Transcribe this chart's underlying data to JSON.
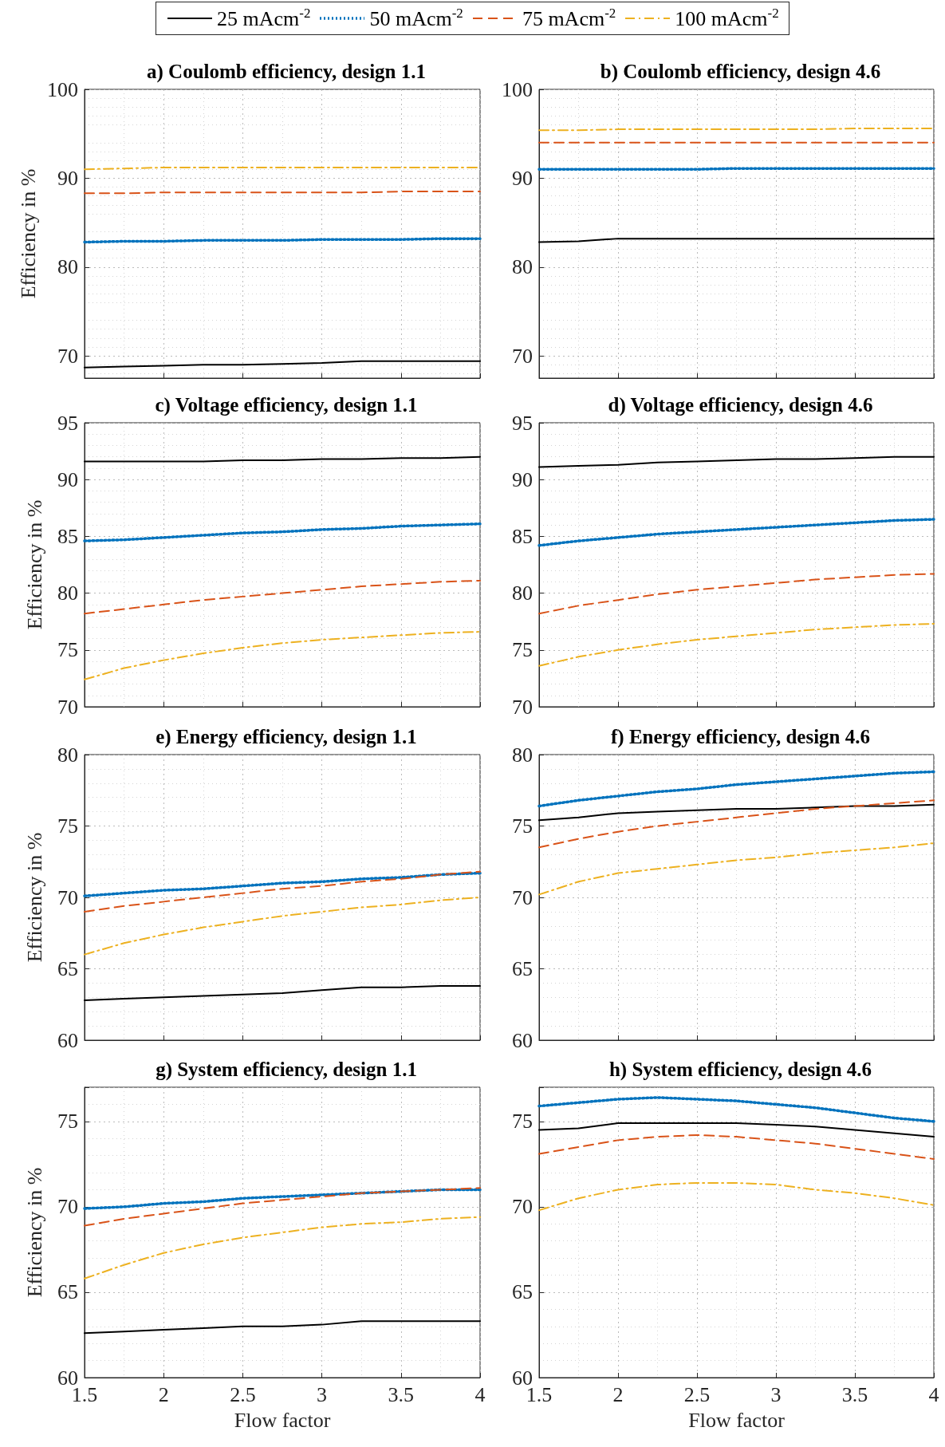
{
  "chart_data": [
    {
      "type": "line",
      "title": "a) Coulomb efficiency, design 1.1",
      "ylabel": "Efficiency in %",
      "legend": "top",
      "grid": true,
      "tick_labels": "y",
      "xlim": [
        1.5,
        4
      ],
      "xticks": [
        1.5,
        2,
        2.5,
        3,
        3.5,
        4
      ],
      "ylim": [
        67.5,
        100
      ],
      "yticks": [
        70,
        80,
        90,
        100
      ],
      "x": [
        1.5,
        1.75,
        2,
        2.25,
        2.5,
        2.75,
        3,
        3.25,
        3.5,
        3.75,
        4
      ],
      "series": [
        {
          "name": "25 mAcm$^{-2}$",
          "color": "#000000",
          "line_style": "solid",
          "values": [
            68.7,
            68.8,
            68.9,
            69.0,
            69.0,
            69.1,
            69.2,
            69.4,
            69.4,
            69.4,
            69.4
          ]
        },
        {
          "name": "50 mAcm$^{-2}$",
          "color": "#0072bd",
          "line_style": "dotted",
          "values": [
            82.8,
            82.9,
            82.9,
            83.0,
            83.0,
            83.0,
            83.1,
            83.1,
            83.1,
            83.2,
            83.2
          ]
        },
        {
          "name": "75 mAcm$^{-2}$",
          "color": "#d95319",
          "line_style": "dashed",
          "values": [
            88.3,
            88.3,
            88.4,
            88.4,
            88.4,
            88.4,
            88.4,
            88.4,
            88.5,
            88.5,
            88.5
          ]
        },
        {
          "name": "100 mAcm$^{-2}$",
          "color": "#edb120",
          "line_style": "dashdot",
          "values": [
            91.0,
            91.1,
            91.2,
            91.2,
            91.2,
            91.2,
            91.2,
            91.2,
            91.2,
            91.2,
            91.2
          ]
        }
      ]
    },
    {
      "type": "line",
      "title": "b) Coulomb efficiency, design 4.6",
      "grid": true,
      "tick_labels": "y",
      "xlim": [
        1.5,
        4
      ],
      "xticks": [
        1.5,
        2,
        2.5,
        3,
        3.5,
        4
      ],
      "ylim": [
        67.5,
        100
      ],
      "yticks": [
        70,
        80,
        90,
        100
      ],
      "x": [
        1.5,
        1.75,
        2,
        2.25,
        2.5,
        2.75,
        3,
        3.25,
        3.5,
        3.75,
        4
      ],
      "series": [
        {
          "color": "#000000",
          "line_style": "solid",
          "values": [
            82.8,
            82.9,
            83.2,
            83.2,
            83.2,
            83.2,
            83.2,
            83.2,
            83.2,
            83.2,
            83.2
          ]
        },
        {
          "color": "#0072bd",
          "line_style": "dotted",
          "values": [
            91.0,
            91.0,
            91.0,
            91.0,
            91.0,
            91.1,
            91.1,
            91.1,
            91.1,
            91.1,
            91.1
          ]
        },
        {
          "color": "#d95319",
          "line_style": "dashed",
          "values": [
            94.0,
            94.0,
            94.0,
            94.0,
            94.0,
            94.0,
            94.0,
            94.0,
            94.0,
            94.0,
            94.0
          ]
        },
        {
          "color": "#edb120",
          "line_style": "dashdot",
          "values": [
            95.4,
            95.4,
            95.5,
            95.5,
            95.5,
            95.5,
            95.5,
            95.5,
            95.6,
            95.6,
            95.6
          ]
        }
      ]
    },
    {
      "type": "line",
      "title": "c) Voltage efficiency, design 1.1",
      "ylabel": "Efficiency in %",
      "grid": true,
      "tick_labels": "y",
      "xlim": [
        1.5,
        4
      ],
      "xticks": [
        1.5,
        2,
        2.5,
        3,
        3.5,
        4
      ],
      "ylim": [
        70,
        95
      ],
      "yticks": [
        70,
        75,
        80,
        85,
        90,
        95
      ],
      "x": [
        1.5,
        1.75,
        2,
        2.25,
        2.5,
        2.75,
        3,
        3.25,
        3.5,
        3.75,
        4
      ],
      "series": [
        {
          "color": "#000000",
          "line_style": "solid",
          "values": [
            91.6,
            91.6,
            91.6,
            91.6,
            91.7,
            91.7,
            91.8,
            91.8,
            91.9,
            91.9,
            92.0
          ]
        },
        {
          "color": "#0072bd",
          "line_style": "dotted",
          "values": [
            84.6,
            84.7,
            84.9,
            85.1,
            85.3,
            85.4,
            85.6,
            85.7,
            85.9,
            86.0,
            86.1
          ]
        },
        {
          "color": "#d95319",
          "line_style": "dashed",
          "values": [
            78.2,
            78.6,
            79.0,
            79.4,
            79.7,
            80.0,
            80.3,
            80.6,
            80.8,
            81.0,
            81.1
          ]
        },
        {
          "color": "#edb120",
          "line_style": "dashdot",
          "values": [
            72.4,
            73.4,
            74.1,
            74.7,
            75.2,
            75.6,
            75.9,
            76.1,
            76.3,
            76.5,
            76.6
          ]
        }
      ]
    },
    {
      "type": "line",
      "title": "d) Voltage efficiency, design 4.6",
      "grid": true,
      "tick_labels": "y",
      "xlim": [
        1.5,
        4
      ],
      "xticks": [
        1.5,
        2,
        2.5,
        3,
        3.5,
        4
      ],
      "ylim": [
        70,
        95
      ],
      "yticks": [
        70,
        75,
        80,
        85,
        90,
        95
      ],
      "x": [
        1.5,
        1.75,
        2,
        2.25,
        2.5,
        2.75,
        3,
        3.25,
        3.5,
        3.75,
        4
      ],
      "series": [
        {
          "color": "#000000",
          "line_style": "solid",
          "values": [
            91.1,
            91.2,
            91.3,
            91.5,
            91.6,
            91.7,
            91.8,
            91.8,
            91.9,
            92.0,
            92.0
          ]
        },
        {
          "color": "#0072bd",
          "line_style": "dotted",
          "values": [
            84.2,
            84.6,
            84.9,
            85.2,
            85.4,
            85.6,
            85.8,
            86.0,
            86.2,
            86.4,
            86.5
          ]
        },
        {
          "color": "#d95319",
          "line_style": "dashed",
          "values": [
            78.2,
            78.9,
            79.4,
            79.9,
            80.3,
            80.6,
            80.9,
            81.2,
            81.4,
            81.6,
            81.7
          ]
        },
        {
          "color": "#edb120",
          "line_style": "dashdot",
          "values": [
            73.6,
            74.4,
            75.0,
            75.5,
            75.9,
            76.2,
            76.5,
            76.8,
            77.0,
            77.2,
            77.3
          ]
        }
      ]
    },
    {
      "type": "line",
      "title": "e) Energy efficiency, design 1.1",
      "ylabel": "Efficiency in %",
      "grid": true,
      "tick_labels": "y",
      "xlim": [
        1.5,
        4
      ],
      "xticks": [
        1.5,
        2,
        2.5,
        3,
        3.5,
        4
      ],
      "ylim": [
        60,
        80
      ],
      "yticks": [
        60,
        65,
        70,
        75,
        80
      ],
      "x": [
        1.5,
        1.75,
        2,
        2.25,
        2.5,
        2.75,
        3,
        3.25,
        3.5,
        3.75,
        4
      ],
      "series": [
        {
          "color": "#000000",
          "line_style": "solid",
          "values": [
            62.8,
            62.9,
            63.0,
            63.1,
            63.2,
            63.3,
            63.5,
            63.7,
            63.7,
            63.8,
            63.8
          ]
        },
        {
          "color": "#0072bd",
          "line_style": "dotted",
          "values": [
            70.1,
            70.3,
            70.5,
            70.6,
            70.8,
            71.0,
            71.1,
            71.3,
            71.4,
            71.6,
            71.7
          ]
        },
        {
          "color": "#d95319",
          "line_style": "dashed",
          "values": [
            69.0,
            69.4,
            69.7,
            70.0,
            70.3,
            70.6,
            70.8,
            71.1,
            71.3,
            71.6,
            71.8
          ]
        },
        {
          "color": "#edb120",
          "line_style": "dashdot",
          "values": [
            66.0,
            66.8,
            67.4,
            67.9,
            68.3,
            68.7,
            69.0,
            69.3,
            69.5,
            69.8,
            70.0
          ]
        }
      ]
    },
    {
      "type": "line",
      "title": "f) Energy efficiency, design 4.6",
      "grid": true,
      "tick_labels": "y",
      "xlim": [
        1.5,
        4
      ],
      "xticks": [
        1.5,
        2,
        2.5,
        3,
        3.5,
        4
      ],
      "ylim": [
        60,
        80
      ],
      "yticks": [
        60,
        65,
        70,
        75,
        80
      ],
      "x": [
        1.5,
        1.75,
        2,
        2.25,
        2.5,
        2.75,
        3,
        3.25,
        3.5,
        3.75,
        4
      ],
      "series": [
        {
          "color": "#000000",
          "line_style": "solid",
          "values": [
            75.4,
            75.6,
            75.9,
            76.0,
            76.1,
            76.2,
            76.2,
            76.3,
            76.4,
            76.4,
            76.5
          ]
        },
        {
          "color": "#0072bd",
          "line_style": "dotted",
          "values": [
            76.4,
            76.8,
            77.1,
            77.4,
            77.6,
            77.9,
            78.1,
            78.3,
            78.5,
            78.7,
            78.8
          ]
        },
        {
          "color": "#d95319",
          "line_style": "dashed",
          "values": [
            73.5,
            74.1,
            74.6,
            75.0,
            75.3,
            75.6,
            75.9,
            76.2,
            76.4,
            76.6,
            76.8
          ]
        },
        {
          "color": "#edb120",
          "line_style": "dashdot",
          "values": [
            70.2,
            71.1,
            71.7,
            72.0,
            72.3,
            72.6,
            72.8,
            73.1,
            73.3,
            73.5,
            73.8
          ]
        }
      ]
    },
    {
      "type": "line",
      "title": "g) System efficiency, design 1.1",
      "ylabel": "Efficiency in %",
      "xlabel": "Flow factor",
      "grid": true,
      "xlim": [
        1.5,
        4
      ],
      "xticks": [
        1.5,
        2,
        2.5,
        3,
        3.5,
        4
      ],
      "ylim": [
        60,
        77
      ],
      "yticks": [
        60,
        65,
        70,
        75
      ],
      "x": [
        1.5,
        1.75,
        2,
        2.25,
        2.5,
        2.75,
        3,
        3.25,
        3.5,
        3.75,
        4
      ],
      "series": [
        {
          "color": "#000000",
          "line_style": "solid",
          "values": [
            62.6,
            62.7,
            62.8,
            62.9,
            63.0,
            63.0,
            63.1,
            63.3,
            63.3,
            63.3,
            63.3
          ]
        },
        {
          "color": "#0072bd",
          "line_style": "dotted",
          "values": [
            69.9,
            70.0,
            70.2,
            70.3,
            70.5,
            70.6,
            70.7,
            70.8,
            70.9,
            71.0,
            71.0
          ]
        },
        {
          "color": "#d95319",
          "line_style": "dashed",
          "values": [
            68.9,
            69.3,
            69.6,
            69.9,
            70.2,
            70.4,
            70.6,
            70.8,
            70.9,
            71.0,
            71.1
          ]
        },
        {
          "color": "#edb120",
          "line_style": "dashdot",
          "values": [
            65.8,
            66.6,
            67.3,
            67.8,
            68.2,
            68.5,
            68.8,
            69.0,
            69.1,
            69.3,
            69.4
          ]
        }
      ]
    },
    {
      "type": "line",
      "title": "h) System efficiency, design 4.6",
      "xlabel": "Flow factor",
      "grid": true,
      "xlim": [
        1.5,
        4
      ],
      "xticks": [
        1.5,
        2,
        2.5,
        3,
        3.5,
        4
      ],
      "ylim": [
        60,
        77
      ],
      "yticks": [
        60,
        65,
        70,
        75
      ],
      "x": [
        1.5,
        1.75,
        2,
        2.25,
        2.5,
        2.75,
        3,
        3.25,
        3.5,
        3.75,
        4
      ],
      "series": [
        {
          "color": "#000000",
          "line_style": "solid",
          "values": [
            74.5,
            74.6,
            74.9,
            74.9,
            74.9,
            74.9,
            74.8,
            74.7,
            74.5,
            74.3,
            74.1
          ]
        },
        {
          "color": "#0072bd",
          "line_style": "dotted",
          "values": [
            75.9,
            76.1,
            76.3,
            76.4,
            76.3,
            76.2,
            76.0,
            75.8,
            75.5,
            75.2,
            75.0
          ]
        },
        {
          "color": "#d95319",
          "line_style": "dashed",
          "values": [
            73.1,
            73.5,
            73.9,
            74.1,
            74.2,
            74.1,
            73.9,
            73.7,
            73.4,
            73.1,
            72.8
          ]
        },
        {
          "color": "#edb120",
          "line_style": "dashdot",
          "values": [
            69.8,
            70.5,
            71.0,
            71.3,
            71.4,
            71.4,
            71.3,
            71.0,
            70.8,
            70.5,
            70.1
          ]
        }
      ]
    }
  ]
}
